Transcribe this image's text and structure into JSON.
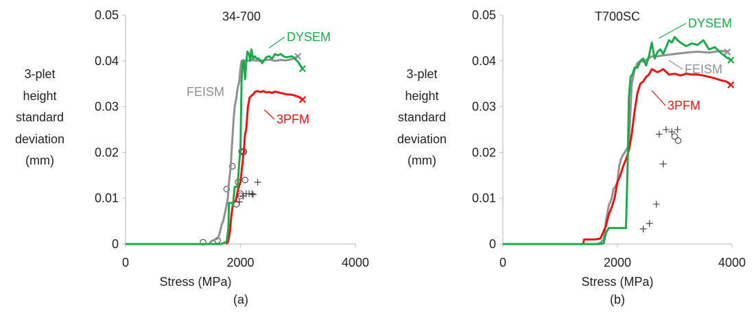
{
  "chart_data": [
    {
      "type": "line",
      "title": "34-700",
      "xlabel": "Stress (MPa)",
      "ylabel": [
        "3-plet",
        "height",
        "standard",
        "deviation",
        "(mm)"
      ],
      "panel_label": "(a)",
      "xlim": [
        0,
        4000
      ],
      "ylim": [
        0,
        0.05
      ],
      "xticks": [
        "0",
        "2000",
        "4000"
      ],
      "yticks": [
        "0",
        "0.01",
        "0.02",
        "0.03",
        "0.04",
        "0.05"
      ],
      "series": [
        {
          "name": "DYSEM",
          "color": "#1aaa4c",
          "x": [
            0,
            1650,
            1700,
            1760,
            1790,
            1800,
            1850,
            1870,
            1900,
            1920,
            1950,
            1980,
            2000,
            2020,
            2040,
            2060,
            2080,
            2100,
            2120,
            2150,
            2170,
            2190,
            2220,
            2250,
            2280,
            2320,
            2380,
            2450,
            2500,
            2550,
            2600,
            2650,
            2700,
            2750,
            2800,
            2900,
            3000,
            3080
          ],
          "y": [
            0,
            0,
            0.0002,
            0.0005,
            0.0035,
            0.009,
            0.009,
            0.0085,
            0.0125,
            0.0125,
            0.0125,
            0.018,
            0.0205,
            0.036,
            0.0395,
            0.04,
            0.036,
            0.0395,
            0.042,
            0.0415,
            0.04,
            0.0425,
            0.0405,
            0.041,
            0.0405,
            0.0405,
            0.0395,
            0.0408,
            0.041,
            0.0405,
            0.0415,
            0.0412,
            0.0415,
            0.041,
            0.0408,
            0.041,
            0.0398,
            0.0383
          ],
          "end_marker": "×"
        },
        {
          "name": "FEISM",
          "color": "#909090",
          "x": [
            0,
            1450,
            1500,
            1560,
            1600,
            1630,
            1680,
            1700,
            1750,
            1780,
            1800,
            1830,
            1850,
            1880,
            1900,
            1930,
            1950,
            1980,
            2000,
            2020,
            2050,
            2100,
            2200,
            2300,
            2400,
            2500,
            2600,
            2700,
            2800,
            2900,
            3000
          ],
          "y": [
            0,
            0,
            0.0007,
            0.001,
            0.0012,
            0.002,
            0.0045,
            0.005,
            0.008,
            0.01,
            0.0135,
            0.017,
            0.021,
            0.027,
            0.03,
            0.032,
            0.034,
            0.0355,
            0.0385,
            0.04,
            0.0402,
            0.04,
            0.0402,
            0.04,
            0.0401,
            0.0403,
            0.04,
            0.0402,
            0.0401,
            0.0404,
            0.041
          ],
          "end_marker": "×"
        },
        {
          "name": "3PFM",
          "color": "#ee1111",
          "x": [
            1750,
            1780,
            1800,
            1820,
            1840,
            1860,
            1880,
            1920,
            1960,
            2000,
            2030,
            2060,
            2080,
            2100,
            2130,
            2160,
            2200,
            2230,
            2260,
            2300,
            2350,
            2400,
            2450,
            2500,
            2550,
            2600,
            2700,
            2800,
            2900,
            3000,
            3080
          ],
          "y": [
            0,
            0.0004,
            0.0015,
            0.003,
            0.006,
            0.008,
            0.009,
            0.0095,
            0.012,
            0.0135,
            0.017,
            0.0205,
            0.024,
            0.025,
            0.03,
            0.032,
            0.0325,
            0.0328,
            0.0333,
            0.0334,
            0.0332,
            0.0334,
            0.0331,
            0.0332,
            0.033,
            0.0333,
            0.033,
            0.0327,
            0.0326,
            0.0322,
            0.0316
          ],
          "end_marker": "×"
        }
      ],
      "scatter_circle": [
        [
          1350,
          0.0004
        ],
        [
          1600,
          0.0008
        ],
        [
          1760,
          0.012
        ],
        [
          1860,
          0.017
        ],
        [
          1930,
          0.0087
        ],
        [
          1960,
          0.0135
        ],
        [
          2000,
          0.011
        ],
        [
          2000,
          0.0105
        ],
        [
          2020,
          0.0202
        ],
        [
          2040,
          0.0201
        ],
        [
          2060,
          0.0202
        ],
        [
          2080,
          0.014
        ]
      ],
      "scatter_plus": [
        [
          1980,
          0.0092
        ],
        [
          2050,
          0.0105
        ],
        [
          2100,
          0.011
        ],
        [
          2150,
          0.011
        ],
        [
          2200,
          0.011
        ],
        [
          2220,
          0.0108
        ],
        [
          2300,
          0.0135
        ]
      ]
    },
    {
      "type": "line",
      "title": "T700SC",
      "xlabel": "Stress (MPa)",
      "ylabel": [
        "3-plet",
        "height",
        "standard",
        "deviation",
        "(mm)"
      ],
      "panel_label": "(b)",
      "xlim": [
        0,
        4000
      ],
      "ylim": [
        0,
        0.05
      ],
      "xticks": [
        "0",
        "2000",
        "4000"
      ],
      "yticks": [
        "0",
        "0.01",
        "0.02",
        "0.03",
        "0.04",
        "0.05"
      ],
      "series": [
        {
          "name": "DYSEM",
          "color": "#1aaa4c",
          "x": [
            0,
            1700,
            1760,
            1800,
            1850,
            1900,
            2000,
            2100,
            2150,
            2180,
            2200,
            2230,
            2260,
            2300,
            2350,
            2400,
            2450,
            2500,
            2550,
            2600,
            2650,
            2700,
            2750,
            2800,
            2850,
            2900,
            2950,
            3000,
            3050,
            3100,
            3200,
            3300,
            3400,
            3500,
            3600,
            3700,
            3800,
            3900,
            3980
          ],
          "y": [
            0,
            0,
            0.0002,
            0.0025,
            0.0035,
            0.0035,
            0.0035,
            0.0035,
            0.0035,
            0.018,
            0.032,
            0.0365,
            0.037,
            0.0385,
            0.0385,
            0.04,
            0.0405,
            0.039,
            0.041,
            0.044,
            0.0405,
            0.042,
            0.0425,
            0.0415,
            0.043,
            0.0445,
            0.044,
            0.0452,
            0.0445,
            0.044,
            0.0432,
            0.0438,
            0.0435,
            0.0445,
            0.0425,
            0.043,
            0.0418,
            0.0408,
            0.0402
          ],
          "end_marker": "×"
        },
        {
          "name": "FEISM",
          "color": "#909090",
          "x": [
            1650,
            1700,
            1760,
            1800,
            1850,
            1870,
            1900,
            1930,
            1960,
            2000,
            2030,
            2060,
            2100,
            2150,
            2200,
            2250,
            2300,
            2350,
            2400,
            2450,
            2500,
            2600,
            2700,
            2800,
            3000,
            3200,
            3400,
            3600,
            3800,
            3920
          ],
          "y": [
            0,
            0.0003,
            0.001,
            0.005,
            0.0085,
            0.009,
            0.01,
            0.012,
            0.0125,
            0.0135,
            0.017,
            0.0185,
            0.0195,
            0.0205,
            0.0215,
            0.035,
            0.038,
            0.0395,
            0.04,
            0.0398,
            0.0402,
            0.041,
            0.041,
            0.0412,
            0.0415,
            0.0418,
            0.042,
            0.0418,
            0.0422,
            0.042
          ],
          "end_marker": "×"
        },
        {
          "name": "3PFM",
          "color": "#ee1111",
          "x": [
            1400,
            1420,
            1500,
            1600,
            1700,
            1750,
            1800,
            1850,
            1900,
            1950,
            2000,
            2050,
            2100,
            2150,
            2200,
            2250,
            2300,
            2350,
            2400,
            2450,
            2500,
            2550,
            2600,
            2700,
            2800,
            2900,
            3000,
            3100,
            3200,
            3300,
            3400,
            3500,
            3600,
            3700,
            3800,
            3900,
            3980
          ],
          "y": [
            0,
            0.001,
            0.001,
            0.001,
            0.0012,
            0.0025,
            0.004,
            0.0065,
            0.008,
            0.01,
            0.0135,
            0.015,
            0.017,
            0.0185,
            0.0205,
            0.024,
            0.029,
            0.033,
            0.035,
            0.0355,
            0.0365,
            0.037,
            0.0382,
            0.0375,
            0.0382,
            0.037,
            0.0372,
            0.0368,
            0.0372,
            0.037,
            0.037,
            0.0368,
            0.0365,
            0.0362,
            0.0358,
            0.0355,
            0.0348
          ],
          "end_marker": "×"
        }
      ],
      "scatter_circle": [
        [
          3000,
          0.0235
        ],
        [
          3060,
          0.0226
        ]
      ],
      "scatter_plus": [
        [
          2450,
          0.0033
        ],
        [
          2560,
          0.0045
        ],
        [
          2680,
          0.0087
        ],
        [
          2800,
          0.0175
        ],
        [
          2730,
          0.024
        ],
        [
          2850,
          0.025
        ],
        [
          2950,
          0.0245
        ],
        [
          3050,
          0.025
        ]
      ]
    }
  ]
}
